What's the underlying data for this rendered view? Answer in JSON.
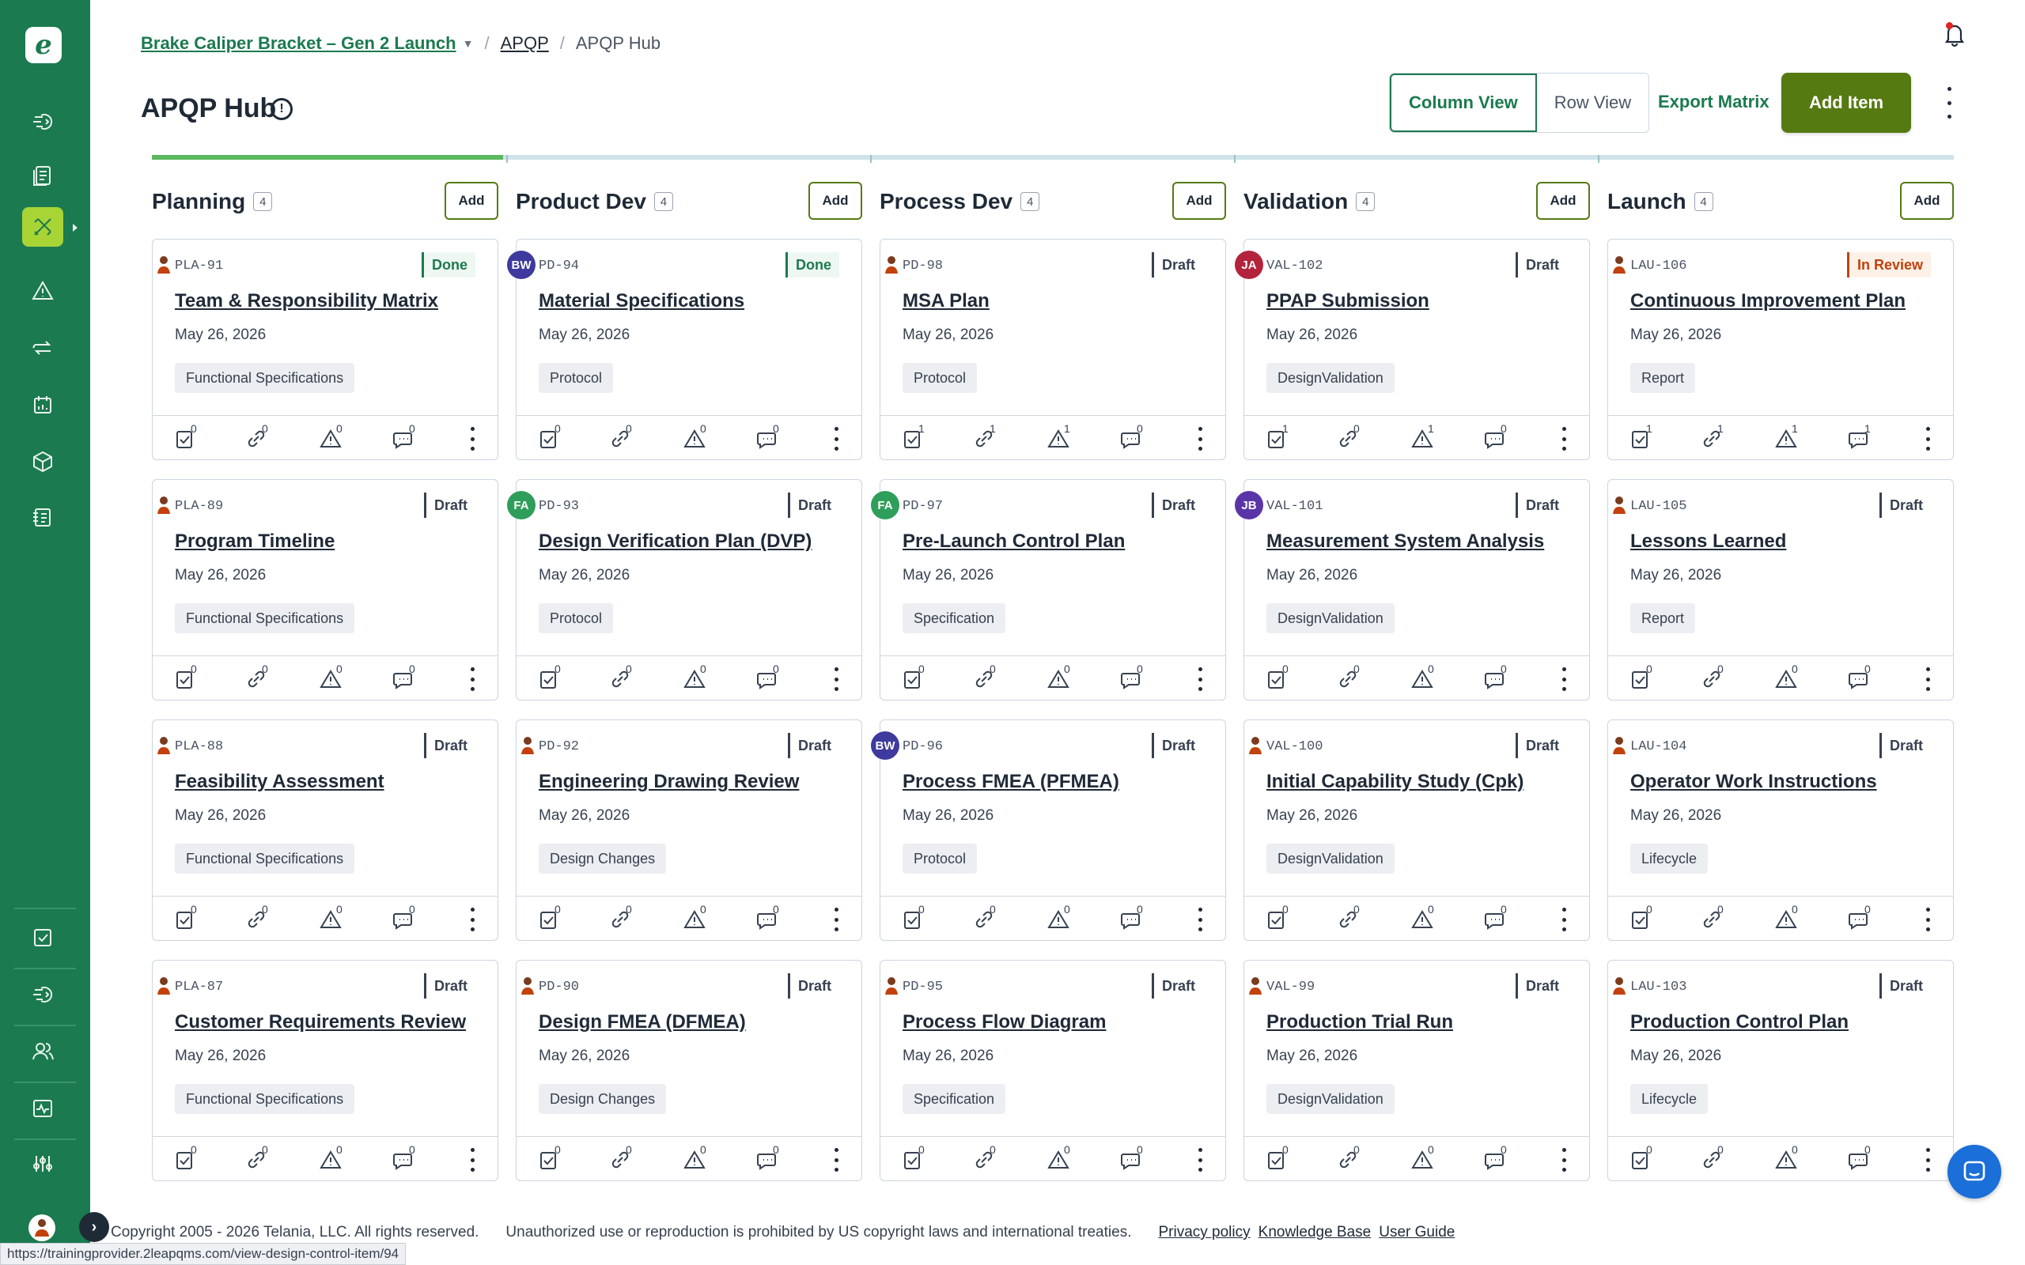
{
  "breadcrumb": {
    "program": "Brake Caliper Bracket – Gen 2 Launch",
    "section": "APQP",
    "current": "APQP Hub"
  },
  "page": {
    "title": "APQP Hub"
  },
  "toolbar": {
    "column_view": "Column View",
    "row_view": "Row View",
    "export": "Export Matrix",
    "add_item": "Add Item"
  },
  "colors": {
    "brand": "#1b7a4f",
    "accent": "#567a12",
    "active_nav": "#a8d435",
    "progress": "#5cb85c"
  },
  "progress": {
    "fraction_complete": 0.2
  },
  "columns": [
    {
      "title": "Planning",
      "count": "4",
      "add_label": "Add",
      "cards": [
        {
          "id": "PLA-91",
          "status": "Done",
          "title": "Team & Responsibility Matrix",
          "date": "May 26, 2026",
          "tag": "Functional Specifications",
          "counts": [
            "0",
            "0",
            "0",
            "0"
          ],
          "owner": "user-icon"
        },
        {
          "id": "PLA-89",
          "status": "Draft",
          "title": "Program Timeline",
          "date": "May 26, 2026",
          "tag": "Functional Specifications",
          "counts": [
            "0",
            "0",
            "0",
            "0"
          ],
          "owner": "user-icon"
        },
        {
          "id": "PLA-88",
          "status": "Draft",
          "title": "Feasibility Assessment",
          "date": "May 26, 2026",
          "tag": "Functional Specifications",
          "counts": [
            "0",
            "0",
            "0",
            "0"
          ],
          "owner": "user-icon"
        },
        {
          "id": "PLA-87",
          "status": "Draft",
          "title": "Customer Requirements Review",
          "date": "May 26, 2026",
          "tag": "Functional Specifications",
          "counts": [
            "0",
            "0",
            "0",
            "0"
          ],
          "owner": "user-icon"
        }
      ]
    },
    {
      "title": "Product Dev",
      "count": "4",
      "add_label": "Add",
      "cards": [
        {
          "id": "PD-94",
          "status": "Done",
          "title": "Material Specifications",
          "date": "May 26, 2026",
          "tag": "Protocol",
          "counts": [
            "0",
            "0",
            "0",
            "0"
          ],
          "owner": "BW",
          "owner_color": "#3f3a9e"
        },
        {
          "id": "PD-93",
          "status": "Draft",
          "title": "Design Verification Plan (DVP)",
          "date": "May 26, 2026",
          "tag": "Protocol",
          "counts": [
            "0",
            "0",
            "0",
            "0"
          ],
          "owner": "FA",
          "owner_color": "#2f9e5b"
        },
        {
          "id": "PD-92",
          "status": "Draft",
          "title": "Engineering Drawing Review",
          "date": "May 26, 2026",
          "tag": "Design Changes",
          "counts": [
            "0",
            "0",
            "0",
            "0"
          ],
          "owner": "user-icon"
        },
        {
          "id": "PD-90",
          "status": "Draft",
          "title": "Design FMEA (DFMEA)",
          "date": "May 26, 2026",
          "tag": "Design Changes",
          "counts": [
            "0",
            "0",
            "0",
            "0"
          ],
          "owner": "user-icon"
        }
      ]
    },
    {
      "title": "Process Dev",
      "count": "4",
      "add_label": "Add",
      "cards": [
        {
          "id": "PD-98",
          "status": "Draft",
          "title": "MSA Plan",
          "date": "May 26, 2026",
          "tag": "Protocol",
          "counts": [
            "1",
            "1",
            "1",
            "0"
          ],
          "owner": "user-icon"
        },
        {
          "id": "PD-97",
          "status": "Draft",
          "title": "Pre-Launch Control Plan",
          "date": "May 26, 2026",
          "tag": "Specification",
          "counts": [
            "0",
            "0",
            "0",
            "0"
          ],
          "owner": "FA",
          "owner_color": "#2f9e5b"
        },
        {
          "id": "PD-96",
          "status": "Draft",
          "title": "Process FMEA (PFMEA)",
          "date": "May 26, 2026",
          "tag": "Protocol",
          "counts": [
            "0",
            "0",
            "0",
            "0"
          ],
          "owner": "BW",
          "owner_color": "#3f3a9e"
        },
        {
          "id": "PD-95",
          "status": "Draft",
          "title": "Process Flow Diagram",
          "date": "May 26, 2026",
          "tag": "Specification",
          "counts": [
            "0",
            "0",
            "0",
            "0"
          ],
          "owner": "user-icon"
        }
      ]
    },
    {
      "title": "Validation",
      "count": "4",
      "add_label": "Add",
      "cards": [
        {
          "id": "VAL-102",
          "status": "Draft",
          "title": "PPAP Submission",
          "date": "May 26, 2026",
          "tag": "DesignValidation",
          "counts": [
            "1",
            "0",
            "1",
            "0"
          ],
          "owner": "JA",
          "owner_color": "#b4233c"
        },
        {
          "id": "VAL-101",
          "status": "Draft",
          "title": "Measurement System Analysis",
          "date": "May 26, 2026",
          "tag": "DesignValidation",
          "counts": [
            "0",
            "0",
            "0",
            "0"
          ],
          "owner": "JB",
          "owner_color": "#5b35a8"
        },
        {
          "id": "VAL-100",
          "status": "Draft",
          "title": "Initial Capability Study (Cpk)",
          "date": "May 26, 2026",
          "tag": "DesignValidation",
          "counts": [
            "0",
            "0",
            "0",
            "0"
          ],
          "owner": "user-icon"
        },
        {
          "id": "VAL-99",
          "status": "Draft",
          "title": "Production Trial Run",
          "date": "May 26, 2026",
          "tag": "DesignValidation",
          "counts": [
            "0",
            "0",
            "0",
            "0"
          ],
          "owner": "user-icon"
        }
      ]
    },
    {
      "title": "Launch",
      "count": "4",
      "add_label": "Add",
      "cards": [
        {
          "id": "LAU-106",
          "status": "In Review",
          "title": "Continuous Improvement Plan",
          "date": "May 26, 2026",
          "tag": "Report",
          "counts": [
            "1",
            "1",
            "1",
            "1"
          ],
          "owner": "user-icon"
        },
        {
          "id": "LAU-105",
          "status": "Draft",
          "title": "Lessons Learned",
          "date": "May 26, 2026",
          "tag": "Report",
          "counts": [
            "0",
            "0",
            "0",
            "0"
          ],
          "owner": "user-icon"
        },
        {
          "id": "LAU-104",
          "status": "Draft",
          "title": "Operator Work Instructions",
          "date": "May 26, 2026",
          "tag": "Lifecycle",
          "counts": [
            "0",
            "0",
            "0",
            "0"
          ],
          "owner": "user-icon"
        },
        {
          "id": "LAU-103",
          "status": "Draft",
          "title": "Production Control Plan",
          "date": "May 26, 2026",
          "tag": "Lifecycle",
          "counts": [
            "0",
            "0",
            "0",
            "0"
          ],
          "owner": "user-icon"
        }
      ]
    }
  ],
  "card_icons": [
    "checklist-icon",
    "link-icon",
    "warning-icon",
    "comment-icon"
  ],
  "sidebar": {
    "top_icons": [
      "workflow-icon",
      "documents-icon",
      "design-control-icon",
      "risk-icon",
      "change-icon",
      "calendar-icon",
      "product-icon",
      "forms-icon"
    ],
    "bottom_icons": [
      "tasks-icon",
      "workflow-icon",
      "users-icon",
      "analytics-icon",
      "settings-icon"
    ]
  },
  "footer": {
    "copyright": "Copyright 2005 - 2026 Telania, LLC. All rights reserved.",
    "notice": "Unauthorized use or reproduction is prohibited by US copyright laws and international treaties.",
    "privacy": "Privacy policy",
    "kb": "Knowledge Base",
    "guide": "User Guide"
  },
  "status_url": "https://trainingprovider.2leapqms.com/view-design-control-item/94"
}
